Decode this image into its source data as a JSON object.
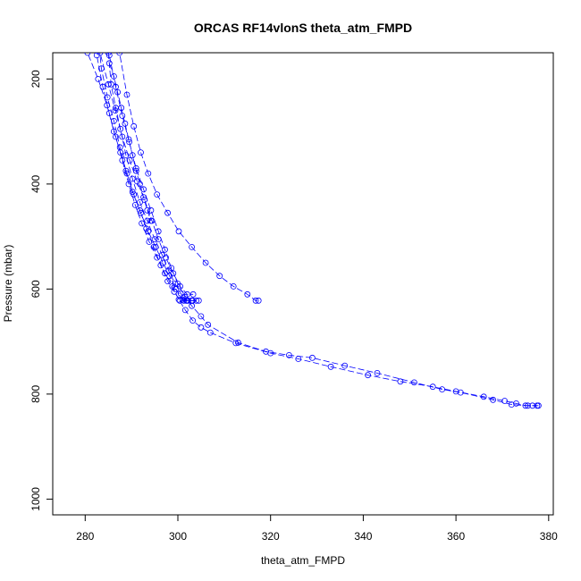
{
  "chart_data": {
    "type": "line",
    "title": "ORCAS RF14vlonS theta_atm_FMPD",
    "xlabel": "theta_atm_FMPD",
    "ylabel": "Pressure (mbar)",
    "xlim": [
      273,
      381
    ],
    "ylim": [
      1030,
      150
    ],
    "y_reversed": true,
    "x_ticks": [
      280,
      300,
      320,
      340,
      360,
      380
    ],
    "x_tick_labels": [
      "280",
      "300",
      "320",
      "340",
      "360",
      "380"
    ],
    "y_ticks": [
      200,
      400,
      600,
      800,
      1000
    ],
    "y_tick_labels": [
      "200",
      "400",
      "600",
      "800",
      "1000"
    ],
    "grid": false,
    "series_color": "#0000ff",
    "series": [
      {
        "x": [
          278.0,
          280.5,
          282.8,
          284.7,
          286.2,
          287.6,
          289.0,
          290.5,
          292.0,
          293.6,
          295.2,
          296.8,
          298.2,
          299.6,
          301.0,
          302.2,
          303.2,
          304.0
        ],
        "y": [
          90,
          150,
          200,
          250,
          300,
          340,
          380,
          420,
          455,
          490,
          520,
          550,
          575,
          600,
          620,
          622,
          622,
          622
        ]
      },
      {
        "x": [
          281.0,
          283.2,
          285.0,
          286.5,
          288.0,
          289.6,
          291.2,
          292.8,
          294.4,
          295.8,
          297.4,
          299.0,
          300.5,
          302.0,
          303.3
        ],
        "y": [
          90,
          150,
          210,
          260,
          310,
          355,
          395,
          430,
          470,
          505,
          540,
          570,
          595,
          610,
          610
        ]
      },
      {
        "x": [
          282.5,
          283.5,
          284.8,
          286.2,
          287.5,
          288.8,
          290.2,
          291.8,
          293.2,
          294.8,
          296.3,
          297.8,
          299.2,
          300.4,
          301.3,
          302.0,
          303.0,
          304.5
        ],
        "y": [
          90,
          180,
          235,
          280,
          330,
          375,
          415,
          450,
          485,
          520,
          555,
          585,
          605,
          622,
          622,
          622,
          622,
          622
        ]
      },
      {
        "x": [
          285.0,
          285.6,
          286.6,
          287.6,
          288.8,
          290.2,
          291.8,
          293.4,
          295.0,
          296.6,
          298.0,
          299.4,
          300.6,
          301.8,
          303.0
        ],
        "y": [
          150,
          210,
          255,
          295,
          345,
          390,
          435,
          470,
          505,
          535,
          565,
          590,
          608,
          622,
          622
        ]
      },
      {
        "x": [
          282.0,
          282.5,
          283.8,
          285.2,
          286.6,
          288.0,
          289.4,
          290.8,
          292.2,
          293.8,
          295.5,
          297.2,
          298.8,
          300.2,
          301.6,
          303.2,
          305.0,
          307.0,
          312.5,
          320.0,
          326.0,
          333.0,
          341.0,
          348.0,
          355.0,
          360.0,
          366.0,
          370.5,
          373.0,
          375.0,
          376.5,
          377.5
        ],
        "y": [
          90,
          155,
          215,
          265,
          310,
          355,
          400,
          440,
          475,
          510,
          540,
          570,
          595,
          620,
          640,
          660,
          673,
          683,
          703,
          722,
          733,
          748,
          764,
          776,
          786,
          795,
          805,
          813,
          818,
          822,
          822,
          822
        ]
      },
      {
        "x": [
          284.0,
          285.2,
          286.6,
          288.0,
          289.5,
          291.0,
          292.6,
          294.2,
          295.8,
          297.2,
          298.6,
          300.0,
          301.5,
          303.0,
          305.0,
          306.5,
          313.0,
          319.0,
          324.0,
          329.0,
          336.0,
          343.0,
          351.0,
          357.0,
          361.0,
          368.0,
          372.0,
          375.5,
          377.8
        ],
        "y": [
          90,
          155,
          215,
          270,
          320,
          370,
          410,
          450,
          490,
          525,
          560,
          590,
          615,
          632,
          652,
          668,
          702,
          719,
          726,
          731,
          746,
          760,
          778,
          791,
          797,
          811,
          820,
          822,
          822
        ]
      },
      {
        "x": [
          286.0,
          287.4,
          289.0,
          290.5,
          292.0,
          293.6,
          295.5,
          297.8,
          300.2,
          303.0,
          306.0,
          309.0,
          312.0,
          315.0,
          316.8,
          317.4
        ],
        "y": [
          90,
          150,
          230,
          290,
          340,
          380,
          420,
          455,
          490,
          520,
          550,
          575,
          595,
          610,
          622,
          622
        ]
      },
      {
        "x": [
          285.2,
          286.2,
          287.0,
          287.8,
          288.6,
          289.4,
          290.2,
          291.0,
          291.8,
          292.6,
          293.4,
          294.2
        ],
        "y": [
          170,
          195,
          225,
          255,
          285,
          315,
          345,
          375,
          400,
          425,
          450,
          470
        ]
      }
    ]
  }
}
